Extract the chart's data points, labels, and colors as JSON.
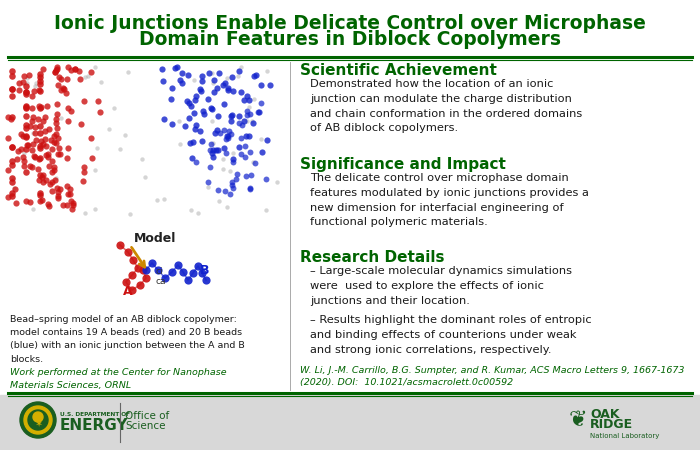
{
  "title_line1": "Ionic Junctions Enable Delicate Control over Microphase",
  "title_line2": "Domain Features in Diblock Copolymers",
  "title_color": "#006400",
  "bg_color": "#ffffff",
  "divider_color": "#006400",
  "section_header_color": "#006400",
  "body_text_color": "#1a1a1a",
  "citation_color": "#006400",
  "section1_header": "Scientific Achievement",
  "section1_body": "Demonstrated how the location of an ionic\njunction can modulate the charge distribution\nand chain conformation in the ordered domains\nof AB diblock copolymers.",
  "section2_header": "Significance and Impact",
  "section2_body": "The delicate control over microphase domain\nfeatures modulated by ionic junctions provides a\nnew dimension for interfacial engineering of\nfunctional polymeric materials.",
  "section3_header": "Research Details",
  "bullet1": "Large-scale molecular dynamics simulations\nwere  used to explore the effects of ionic\njunctions and their location.",
  "bullet2": "Results highlight the dominant roles of entropic\nand binding effects of counterions under weak\nand strong ionic correlations, respectively.",
  "citation": "W. Li, J.-M. Carrillo, B.G. Sumpter, and R. Kumar, ACS Macro Letters 9, 1667-1673\n(2020). DOI:  10.1021/acsmacrolett.0c00592",
  "left_caption": "Bead–spring model of an AB diblock copolymer:\nmodel contains 19 A beads (red) and 20 B beads\n(blue) with an ionic junction between the A and B\nblocks.",
  "left_footnote": "Work performed at the Center for Nanophase\nMaterials Sciences, ORNL",
  "left_footnote_color": "#006400",
  "footer_bg": "#d8d8d8"
}
